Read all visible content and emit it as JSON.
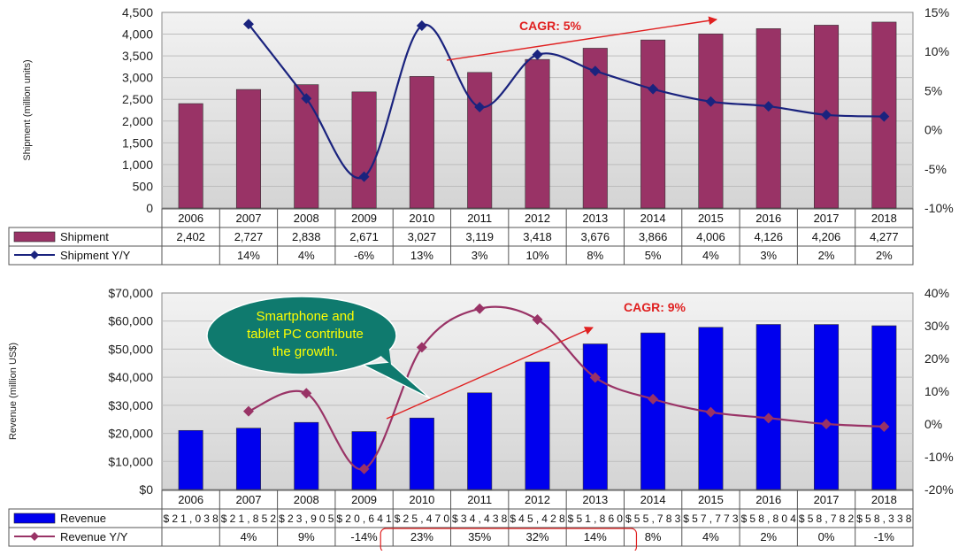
{
  "chart_data": [
    {
      "type": "bar",
      "categories": [
        "2006",
        "2007",
        "2008",
        "2009",
        "2010",
        "2011",
        "2012",
        "2013",
        "2014",
        "2015",
        "2016",
        "2017",
        "2018"
      ],
      "ylabel": "Shipment (million units)",
      "ylim": [
        0,
        4500
      ],
      "y_ticks": [
        "0",
        "500",
        "1,000",
        "1,500",
        "2,000",
        "2,500",
        "3,000",
        "3,500",
        "4,000",
        "4,500"
      ],
      "y2lim": [
        -10,
        15
      ],
      "y2_ticks": [
        "-10%",
        "-5%",
        "0%",
        "5%",
        "10%",
        "15%"
      ],
      "series": [
        {
          "name": "Shipment",
          "kind": "bar",
          "color": "#993366",
          "values": [
            2402,
            2727,
            2838,
            2671,
            3027,
            3119,
            3418,
            3676,
            3866,
            4006,
            4126,
            4206,
            4277
          ],
          "labels": [
            "2,402",
            "2,727",
            "2,838",
            "2,671",
            "3,027",
            "3,119",
            "3,418",
            "3,676",
            "3,866",
            "4,006",
            "4,126",
            "4,206",
            "4,277"
          ]
        },
        {
          "name": "Shipment Y/Y",
          "kind": "line",
          "axis": "y2",
          "color": "#1a237e",
          "values": [
            null,
            13.5,
            4,
            -6,
            13.3,
            2.9,
            9.6,
            7.5,
            5.2,
            3.6,
            3.0,
            1.9,
            1.7
          ],
          "labels": [
            "",
            "14%",
            "4%",
            "-6%",
            "13%",
            "3%",
            "10%",
            "8%",
            "5%",
            "4%",
            "3%",
            "2%",
            "2%"
          ]
        }
      ],
      "annotation": {
        "text": "CAGR: 5%",
        "color": "#e02020"
      },
      "grid": true,
      "legend": "data-table-below"
    },
    {
      "type": "bar",
      "categories": [
        "2006",
        "2007",
        "2008",
        "2009",
        "2010",
        "2011",
        "2012",
        "2013",
        "2014",
        "2015",
        "2016",
        "2017",
        "2018"
      ],
      "ylabel": "Revenue (million US$)",
      "ylim": [
        0,
        70000
      ],
      "y_ticks": [
        "$0",
        "$10,000",
        "$20,000",
        "$30,000",
        "$40,000",
        "$50,000",
        "$60,000",
        "$70,000"
      ],
      "y2lim": [
        -20,
        40
      ],
      "y2_ticks": [
        "-20%",
        "-10%",
        "0%",
        "10%",
        "20%",
        "30%",
        "40%"
      ],
      "series": [
        {
          "name": "Revenue",
          "kind": "bar",
          "color": "#0000ee",
          "values": [
            21038,
            21852,
            23905,
            20641,
            25470,
            34438,
            45428,
            51860,
            55783,
            57773,
            58804,
            58782,
            58338
          ],
          "labels": [
            "$21,038",
            "$21,852",
            "$23,905",
            "$20,641",
            "$25,470",
            "$34,438",
            "$45,428",
            "$51,860",
            "$55,783",
            "$57,773",
            "$58,804",
            "$58,782",
            "$58,338"
          ]
        },
        {
          "name": "Revenue Y/Y",
          "kind": "line",
          "axis": "y2",
          "color": "#993366",
          "values": [
            null,
            3.9,
            9.4,
            -13.7,
            23.4,
            35.2,
            31.9,
            14.2,
            7.6,
            3.6,
            1.8,
            0,
            -0.8
          ],
          "labels": [
            "",
            "4%",
            "9%",
            "-14%",
            "23%",
            "35%",
            "32%",
            "14%",
            "8%",
            "4%",
            "2%",
            "0%",
            "-1%"
          ]
        }
      ],
      "annotation": {
        "text": "CAGR: 9%",
        "color": "#e02020"
      },
      "callout": {
        "lines": [
          "Smartphone and",
          "tablet PC contribute",
          "the growth."
        ],
        "fill": "#0f7a6e",
        "text_color": "#ffff00"
      },
      "highlight": {
        "from": "2010",
        "to": "2013",
        "color": "#e02020"
      },
      "grid": true,
      "legend": "data-table-below"
    }
  ]
}
